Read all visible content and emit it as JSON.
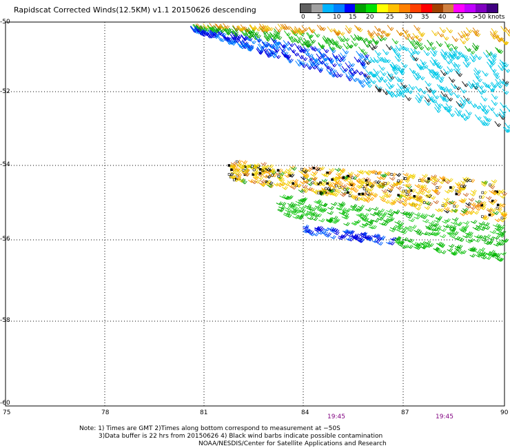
{
  "title": "Rapidscat Corrected Winds(12.5KM) v1.1 20150626 descending",
  "legend": {
    "colors": [
      "#606060",
      "#a0a0a0",
      "#00b4ff",
      "#0080ff",
      "#0000ff",
      "#00a000",
      "#00e000",
      "#ffff00",
      "#ffc000",
      "#ff8000",
      "#ff4000",
      "#ff0000",
      "#a04000",
      "#d08040",
      "#ff00ff",
      "#c000ff",
      "#8000c0",
      "#400080"
    ],
    "ticks": [
      "0",
      "5",
      "10",
      "15",
      "20",
      "25",
      "30",
      "35",
      "40",
      "45",
      ">50 knots"
    ]
  },
  "axes": {
    "lat_labels": [
      "-50",
      "-52",
      "-54",
      "-56",
      "-58",
      "-60"
    ],
    "lon_labels": [
      "75",
      "78",
      "81",
      "84",
      "87",
      "90"
    ]
  },
  "time_labels": [
    "19:45",
    "19:45"
  ],
  "notes": {
    "line1": "Note:  1) Times are GMT  2)Times along bottom correspond to measurement at  −50S",
    "line2": "3)Data buffer is 22 hrs from 20150626  4) Black wind barbs indicate possible contamination",
    "line3": "NOAA/NESDIS/Center for Satellite Applications and Research"
  }
}
